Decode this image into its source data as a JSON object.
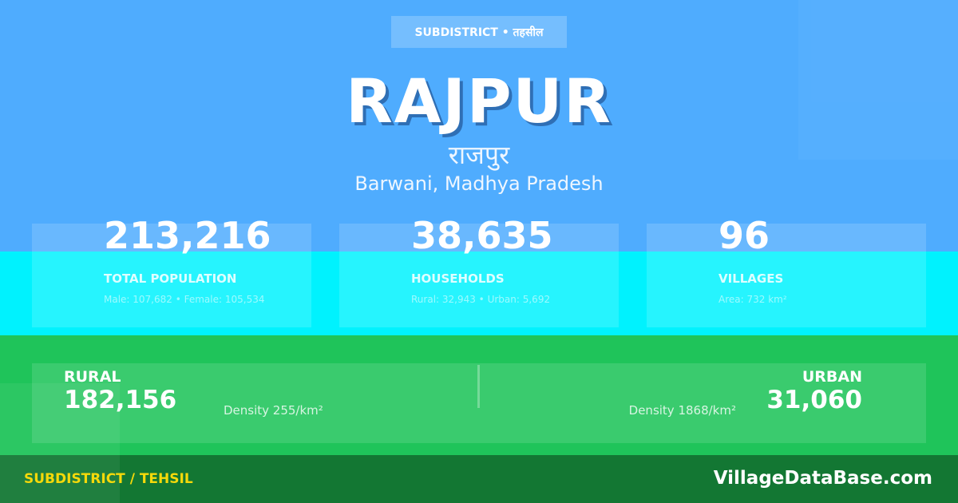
{
  "colors": {
    "top": "#4facfe",
    "band": "#00f2fe",
    "green": "#1fc45a",
    "footer": "#137733",
    "footer_label": "#f5d90a"
  },
  "badge": "SUBDISTRICT • तहसील",
  "title": "RAJPUR",
  "title_hindi": "राजपुर",
  "location": "Barwani, Madhya Pradesh",
  "stats": [
    {
      "value": "213,216",
      "label": "TOTAL POPULATION",
      "sub": "Male: 107,682 • Female: 105,534"
    },
    {
      "value": "38,635",
      "label": "HOUSEHOLDS",
      "sub": "Rural: 32,943 • Urban: 5,692"
    },
    {
      "value": "96",
      "label": "VILLAGES",
      "sub": "Area: 732 km²"
    }
  ],
  "rural": {
    "label": "RURAL",
    "value": "182,156",
    "density": "Density 255/km²"
  },
  "urban": {
    "label": "URBAN",
    "value": "31,060",
    "density": "Density 1868/km²"
  },
  "footer": {
    "category": "SUBDISTRICT / TEHSIL",
    "brand": "VillageDataBase.com"
  }
}
